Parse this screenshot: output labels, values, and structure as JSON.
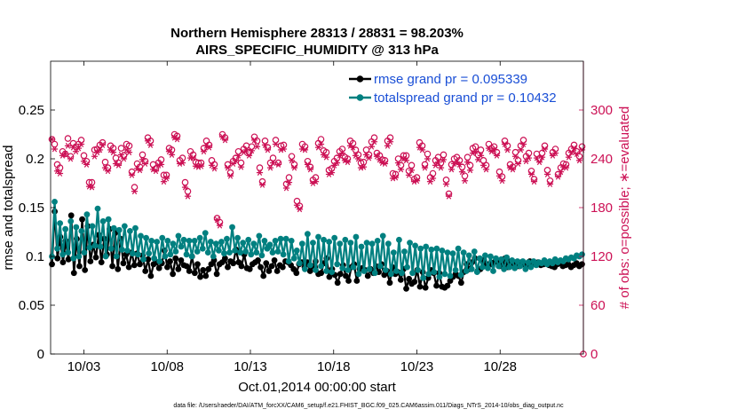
{
  "chart_data": {
    "type": "line",
    "title_line1": "Northern Hemisphere 28313 / 28831 = 98.203%",
    "title_line2": "AIRS_SPECIFIC_HUMIDITY @ 313 hPa",
    "ylabel_left": "rmse and totalspread",
    "ylabel_right": "# of obs: o=possible; ∗=evaluated",
    "xlabel": "Oct.01,2014 00:00:00 start",
    "footnote": "data file: /Users/raeder/DAI/ATM_forcXX/CAM6_setup/f.e21.FHIST_BGC.f09_025.CAM6assim.011/Diags_NTrS_2014-10/obs_diag_output.nc",
    "xlim": [
      1.0,
      33.0
    ],
    "ylim_left": [
      0,
      0.3
    ],
    "ylim_right": [
      0,
      360
    ],
    "x_ticks": [
      3,
      8,
      13,
      18,
      23,
      28
    ],
    "x_tick_labels": [
      "10/03",
      "10/08",
      "10/13",
      "10/18",
      "10/23",
      "10/28"
    ],
    "y_left_ticks": [
      0,
      0.05,
      0.1,
      0.15,
      0.2,
      0.25
    ],
    "y_left_tick_labels": [
      "0",
      "0.05",
      "0.1",
      "0.15",
      "0.2",
      "0.25"
    ],
    "y_right_ticks": [
      0,
      60,
      120,
      180,
      240,
      300
    ],
    "y_right_tick_labels": [
      "0",
      "60",
      "120",
      "180",
      "240",
      "300"
    ],
    "colors": {
      "rmse": "#000000",
      "spread": "#008080",
      "obs": "#cc1155",
      "legend_text": "#1a4fd6"
    },
    "legend": [
      {
        "label": "rmse grand pr = 0.095339",
        "color": "#000000"
      },
      {
        "label": "totalspread grand pr = 0.10432",
        "color": "#008080"
      }
    ],
    "series": [
      {
        "name": "rmse",
        "values": [
          0.092,
          0.146,
          0.098,
          0.12,
          0.094,
          0.116,
          0.097,
          0.142,
          0.083,
          0.118,
          0.09,
          0.138,
          0.086,
          0.131,
          0.095,
          0.112,
          0.099,
          0.122,
          0.094,
          0.118,
          0.102,
          0.128,
          0.09,
          0.124,
          0.087,
          0.118,
          0.093,
          0.102,
          0.089,
          0.104,
          0.091,
          0.103,
          0.092,
          0.101,
          0.085,
          0.097,
          0.08,
          0.092,
          0.094,
          0.088,
          0.093,
          0.106,
          0.089,
          0.095,
          0.082,
          0.098,
          0.087,
          0.096,
          0.091,
          0.09,
          0.085,
          0.1,
          0.083,
          0.092,
          0.079,
          0.086,
          0.08,
          0.087,
          0.092,
          0.096,
          0.082,
          0.092,
          0.094,
          0.098,
          0.089,
          0.095,
          0.093,
          0.107,
          0.094,
          0.09,
          0.102,
          0.088,
          0.087,
          0.092,
          0.094,
          0.096,
          0.089,
          0.08,
          0.093,
          0.085,
          0.09,
          0.096,
          0.085,
          0.091,
          0.089,
          0.095,
          0.094,
          0.091,
          0.087,
          0.083,
          0.092,
          0.094,
          0.089,
          0.094,
          0.085,
          0.09,
          0.095,
          0.082,
          0.083,
          0.093,
          0.098,
          0.079,
          0.087,
          0.081,
          0.073,
          0.082,
          0.091,
          0.08,
          0.075,
          0.089,
          0.092,
          0.075,
          0.087,
          0.088,
          0.086,
          0.08,
          0.087,
          0.083,
          0.09,
          0.084,
          0.092,
          0.081,
          0.085,
          0.073,
          0.089,
          0.082,
          0.084,
          0.076,
          0.087,
          0.067,
          0.077,
          0.072,
          0.074,
          0.086,
          0.069,
          0.084,
          0.068,
          0.078,
          0.086,
          0.083,
          0.07,
          0.083,
          0.069,
          0.068,
          0.07,
          0.075,
          0.079,
          0.082,
          0.08,
          0.073,
          0.084,
          0.092,
          0.087,
          0.094,
          0.098,
          0.085,
          0.087,
          0.096,
          0.091,
          0.092,
          0.092,
          0.094,
          0.095,
          0.09,
          0.092,
          0.098,
          0.089,
          0.095,
          0.093,
          0.094,
          0.09,
          0.094,
          0.092,
          0.091,
          0.095,
          0.092,
          0.093,
          0.094,
          0.091,
          0.092,
          0.093,
          0.091,
          0.09,
          0.089,
          0.092,
          0.093,
          0.09,
          0.091,
          0.092,
          0.089,
          0.091,
          0.093,
          0.09,
          0.092
        ]
      },
      {
        "name": "totalspread",
        "values": [
          0.1,
          0.156,
          0.108,
          0.134,
          0.102,
          0.128,
          0.104,
          0.136,
          0.098,
          0.13,
          0.1,
          0.126,
          0.104,
          0.143,
          0.109,
          0.131,
          0.111,
          0.149,
          0.11,
          0.136,
          0.1,
          0.138,
          0.108,
          0.129,
          0.1,
          0.127,
          0.107,
          0.131,
          0.106,
          0.126,
          0.103,
          0.129,
          0.102,
          0.121,
          0.097,
          0.119,
          0.103,
          0.116,
          0.098,
          0.115,
          0.095,
          0.119,
          0.1,
          0.116,
          0.102,
          0.113,
          0.105,
          0.121,
          0.11,
          0.117,
          0.102,
          0.116,
          0.1,
          0.116,
          0.105,
          0.119,
          0.108,
          0.124,
          0.104,
          0.115,
          0.1,
          0.113,
          0.106,
          0.115,
          0.103,
          0.118,
          0.104,
          0.13,
          0.106,
          0.119,
          0.104,
          0.114,
          0.105,
          0.117,
          0.102,
          0.113,
          0.104,
          0.121,
          0.101,
          0.116,
          0.108,
          0.112,
          0.104,
          0.116,
          0.105,
          0.118,
          0.102,
          0.118,
          0.095,
          0.116,
          0.098,
          0.106,
          0.093,
          0.113,
          0.087,
          0.123,
          0.091,
          0.114,
          0.086,
          0.12,
          0.09,
          0.117,
          0.085,
          0.115,
          0.084,
          0.119,
          0.092,
          0.113,
          0.088,
          0.117,
          0.086,
          0.114,
          0.089,
          0.12,
          0.082,
          0.11,
          0.085,
          0.114,
          0.087,
          0.113,
          0.083,
          0.116,
          0.09,
          0.121,
          0.086,
          0.113,
          0.082,
          0.104,
          0.085,
          0.117,
          0.083,
          0.105,
          0.089,
          0.114,
          0.083,
          0.111,
          0.086,
          0.108,
          0.078,
          0.11,
          0.082,
          0.107,
          0.084,
          0.108,
          0.079,
          0.106,
          0.082,
          0.104,
          0.08,
          0.103,
          0.086,
          0.108,
          0.081,
          0.104,
          0.085,
          0.101,
          0.087,
          0.105,
          0.084,
          0.098,
          0.089,
          0.101,
          0.088,
          0.1,
          0.085,
          0.098,
          0.09,
          0.097,
          0.087,
          0.099,
          0.089,
          0.096,
          0.088,
          0.095,
          0.09,
          0.095,
          0.087,
          0.094,
          0.089,
          0.095,
          0.091,
          0.094,
          0.093,
          0.096,
          0.092,
          0.095,
          0.093,
          0.097,
          0.094,
          0.096,
          0.095,
          0.098,
          0.097,
          0.099,
          0.098,
          0.101,
          0.1,
          0.102
        ]
      },
      {
        "name": "obs_possible",
        "values": [
          264,
          258,
          233,
          229,
          249,
          246,
          265,
          243,
          259,
          255,
          258,
          263,
          244,
          237,
          211,
          211,
          251,
          252,
          257,
          260,
          236,
          229,
          256,
          253,
          241,
          235,
          253,
          244,
          258,
          256,
          224,
          205,
          234,
          230,
          245,
          237,
          266,
          262,
          233,
          228,
          235,
          239,
          220,
          220,
          253,
          251,
          270,
          268,
          238,
          241,
          211,
          200,
          249,
          245,
          236,
          235,
          235,
          253,
          262,
          257,
          238,
          233,
          167,
          162,
          270,
          266,
          233,
          223,
          237,
          241,
          249,
          235,
          252,
          256,
          248,
          255,
          267,
          262,
          229,
          212,
          262,
          254,
          235,
          241,
          263,
          235,
          256,
          257,
          209,
          217,
          243,
          233,
          188,
          182,
          258,
          255,
          237,
          230,
          214,
          217,
          259,
          264,
          250,
          248,
          226,
          228,
          237,
          241,
          249,
          252,
          242,
          240,
          262,
          259,
          251,
          245,
          235,
          236,
          251,
          245,
          261,
          266,
          247,
          244,
          239,
          238,
          262,
          266,
          222,
          221,
          240,
          232,
          244,
          244,
          225,
          232,
          215,
          217,
          260,
          256,
          233,
          246,
          217,
          222,
          238,
          242,
          235,
          245,
          214,
          197,
          233,
          240,
          242,
          238,
          230,
          219,
          242,
          232,
          253,
          255,
          245,
          251,
          238,
          232,
          258,
          253,
          255,
          248,
          224,
          218,
          262,
          256,
          233,
          230,
          248,
          238,
          256,
          263,
          243,
          247,
          225,
          215,
          246,
          240,
          247,
          256,
          226,
          213,
          248,
          252,
          221,
          229,
          234,
          233,
          247,
          252,
          257,
          249,
          243,
          255
        ]
      },
      {
        "name": "obs_evaluated",
        "values": [
          264,
          252,
          225,
          222,
          244,
          246,
          256,
          240,
          254,
          249,
          253,
          258,
          237,
          233,
          206,
          205,
          243,
          248,
          251,
          257,
          229,
          225,
          251,
          248,
          234,
          232,
          245,
          240,
          251,
          248,
          220,
          200,
          228,
          226,
          239,
          234,
          262,
          257,
          227,
          225,
          232,
          233,
          212,
          216,
          249,
          245,
          266,
          264,
          234,
          235,
          205,
          194,
          241,
          241,
          231,
          230,
          231,
          249,
          256,
          254,
          232,
          228,
          165,
          158,
          267,
          263,
          229,
          219,
          234,
          238,
          244,
          230,
          248,
          251,
          244,
          250,
          263,
          255,
          223,
          208,
          257,
          251,
          229,
          235,
          258,
          233,
          251,
          252,
          204,
          211,
          238,
          229,
          183,
          178,
          252,
          251,
          233,
          227,
          210,
          212,
          254,
          258,
          245,
          242,
          221,
          223,
          232,
          235,
          244,
          247,
          238,
          236,
          256,
          254,
          244,
          240,
          229,
          230,
          245,
          241,
          255,
          261,
          243,
          239,
          235,
          234,
          256,
          261,
          216,
          217,
          235,
          227,
          240,
          238,
          220,
          226,
          212,
          213,
          254,
          251,
          229,
          240,
          212,
          216,
          232,
          236,
          229,
          239,
          209,
          194,
          227,
          234,
          236,
          233,
          224,
          213,
          236,
          226,
          247,
          249,
          239,
          244,
          232,
          227,
          253,
          249,
          251,
          244,
          219,
          213,
          258,
          251,
          229,
          227,
          243,
          234,
          251,
          258,
          237,
          241,
          221,
          212,
          241,
          236,
          242,
          252,
          221,
          209,
          244,
          247,
          218,
          224,
          230,
          229,
          242,
          248,
          253,
          246,
          238,
          251
        ]
      }
    ]
  }
}
